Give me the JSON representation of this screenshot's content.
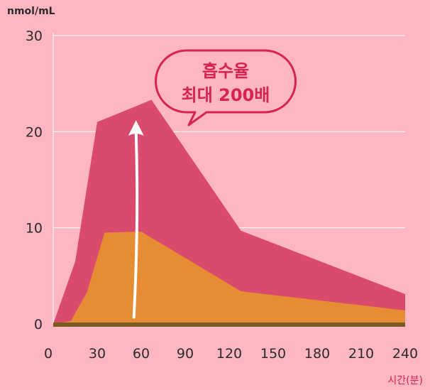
{
  "chart_data": {
    "type": "area",
    "y_unit_label": "nmol/mL",
    "x_unit_label": "시간(분)",
    "x_ticks": [
      0,
      30,
      60,
      90,
      120,
      150,
      180,
      210,
      240
    ],
    "y_ticks": [
      0,
      10,
      20,
      30
    ],
    "xlim": [
      0,
      240
    ],
    "ylim": [
      0,
      30
    ],
    "grid": "horizontal",
    "series": [
      {
        "color": "#d94a6d",
        "points": [
          [
            0,
            0
          ],
          [
            15,
            6.5
          ],
          [
            30,
            21
          ],
          [
            67,
            23.3
          ],
          [
            128,
            9.7
          ],
          [
            240,
            3.1
          ]
        ]
      },
      {
        "color": "#e68d33",
        "points": [
          [
            0,
            0
          ],
          [
            12,
            0.3
          ],
          [
            23,
            3.3
          ],
          [
            35,
            9.5
          ],
          [
            60,
            9.6
          ],
          [
            128,
            3.4
          ],
          [
            240,
            1.4
          ]
        ]
      }
    ],
    "annotation": {
      "lines": [
        "흡수율",
        "최대 200배"
      ],
      "arrow_from": [
        56,
        0.7
      ],
      "arrow_to": [
        56,
        21.2
      ]
    }
  }
}
